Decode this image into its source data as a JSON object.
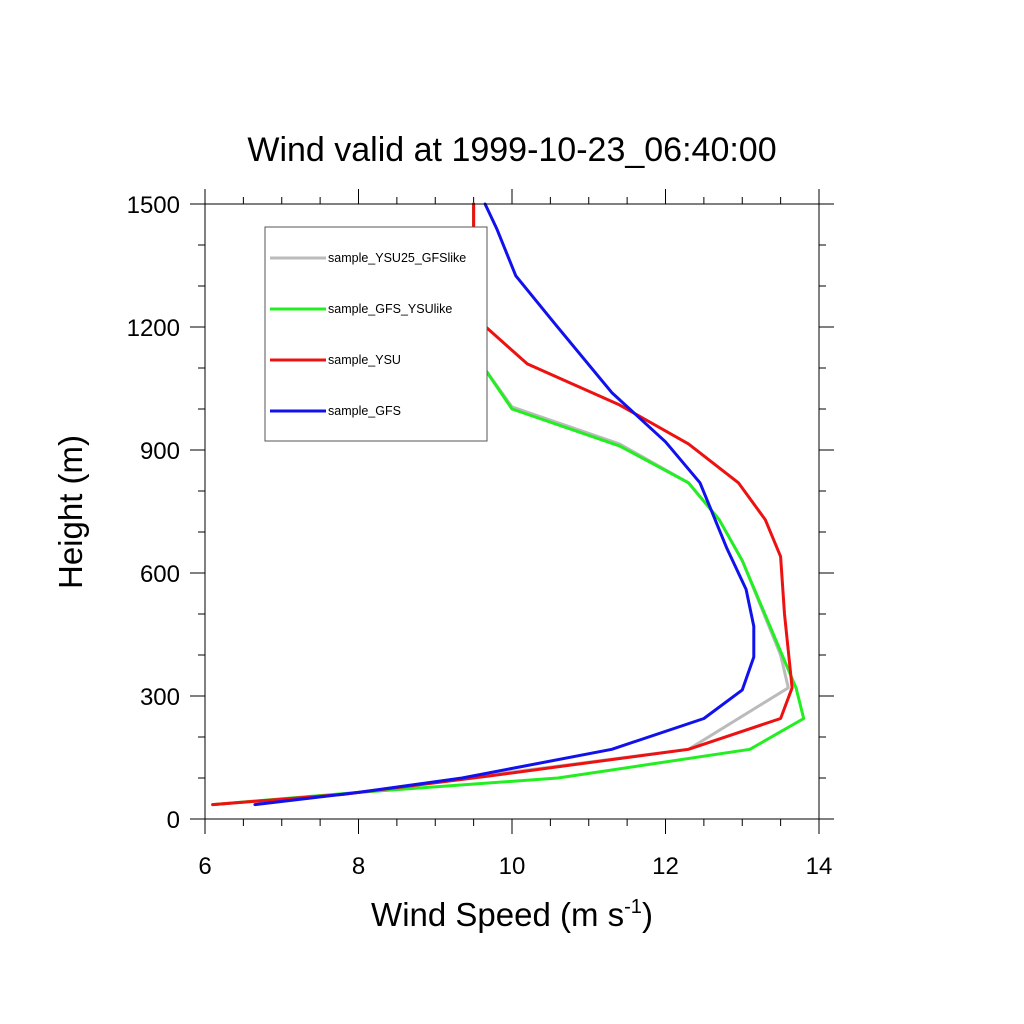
{
  "chart_data": {
    "type": "line",
    "title": "Wind valid at 1999-10-23_06:40:00",
    "xlabel": "Wind Speed (m s",
    "xlabel_sup": "-1",
    "xlabel_end": ")",
    "ylabel": "Height (m)",
    "xlim": [
      6,
      14
    ],
    "ylim": [
      0,
      1500
    ],
    "x_ticks": [
      6,
      8,
      10,
      12,
      14
    ],
    "x_tick_labels": [
      "6",
      "8",
      "10",
      "12",
      "14"
    ],
    "y_ticks": [
      0,
      300,
      600,
      900,
      1200,
      1500
    ],
    "y_tick_labels": [
      "0",
      "300",
      "600",
      "900",
      "1200",
      "1500"
    ],
    "legend_position": "top-left",
    "grid": false,
    "series": [
      {
        "name": "sample_YSU25_GFSlike",
        "color": "#bbbbbb",
        "x": [
          6.1,
          7.8,
          9.6,
          12.3,
          13.6,
          13.5,
          13.0,
          12.7,
          12.3,
          11.4,
          10.0,
          9.6,
          9.5,
          9.5,
          9.5
        ],
        "y": [
          35,
          60,
          105,
          170,
          320,
          400,
          630,
          730,
          820,
          915,
          1005,
          1110,
          1210,
          1350,
          1500
        ]
      },
      {
        "name": "sample_GFS_YSUlike",
        "color": "#22ee22",
        "x": [
          6.1,
          8.0,
          10.6,
          13.1,
          13.8,
          13.7,
          13.0,
          12.7,
          12.3,
          11.4,
          10.0,
          9.6,
          9.5,
          9.5,
          9.5
        ],
        "y": [
          35,
          65,
          100,
          170,
          245,
          320,
          630,
          730,
          820,
          910,
          1000,
          1110,
          1210,
          1350,
          1500
        ]
      },
      {
        "name": "sample_YSU",
        "color": "#ee1111",
        "x": [
          6.1,
          7.8,
          9.7,
          12.3,
          13.5,
          13.65,
          13.55,
          13.5,
          13.3,
          12.95,
          12.3,
          11.4,
          10.2,
          9.6,
          9.5,
          9.5
        ],
        "y": [
          35,
          60,
          105,
          170,
          245,
          320,
          500,
          640,
          730,
          820,
          915,
          1010,
          1110,
          1210,
          1300,
          1500
        ]
      },
      {
        "name": "sample_GFS",
        "color": "#1111ee",
        "x": [
          6.65,
          8.0,
          9.35,
          11.3,
          12.5,
          13.0,
          13.15,
          13.15,
          13.05,
          12.8,
          12.45,
          12.0,
          11.3,
          10.55,
          10.05,
          9.8,
          9.65
        ],
        "y": [
          35,
          65,
          100,
          170,
          245,
          315,
          395,
          470,
          560,
          660,
          820,
          920,
          1040,
          1210,
          1325,
          1440,
          1500
        ]
      }
    ]
  }
}
